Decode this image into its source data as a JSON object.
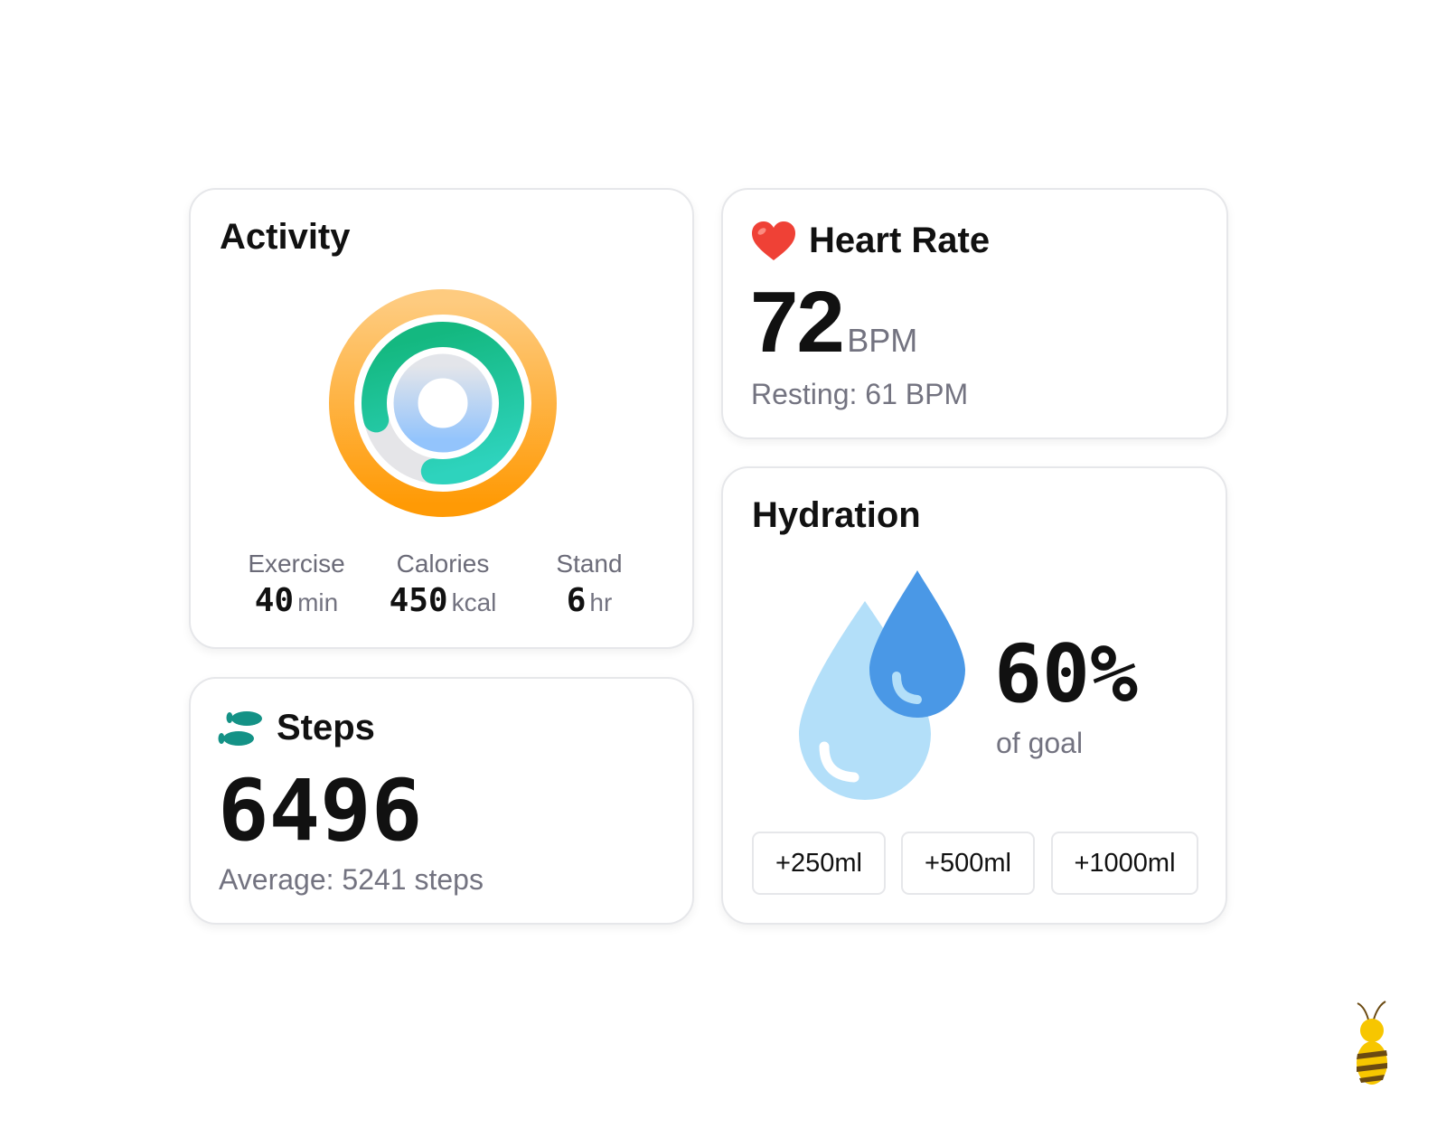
{
  "activity": {
    "title": "Activity",
    "progress": {
      "exercise": 0.81,
      "calories": 1.0,
      "stand": 1.0
    },
    "stats": [
      {
        "label": "Exercise",
        "value": "40",
        "unit": "min"
      },
      {
        "label": "Calories",
        "value": "450",
        "unit": "kcal"
      },
      {
        "label": "Stand",
        "value": "6",
        "unit": "hr"
      }
    ]
  },
  "heart": {
    "title": "Heart Rate",
    "icon": "heart-icon",
    "value": "72",
    "unit": "BPM",
    "resting": "Resting: 61 BPM"
  },
  "steps": {
    "title": "Steps",
    "icon": "footsteps-icon",
    "value": "6496",
    "average": "Average: 5241 steps"
  },
  "hydration": {
    "title": "Hydration",
    "percent": "60%",
    "caption": "of goal",
    "buttons": [
      "+250ml",
      "+500ml",
      "+1000ml"
    ]
  },
  "colors": {
    "orange": "#fea21f",
    "green": "#1fc39d",
    "blue": "#93c5fd",
    "drop_light": "#b3dff9",
    "drop_dark": "#4a98e6",
    "teal": "#149286"
  }
}
